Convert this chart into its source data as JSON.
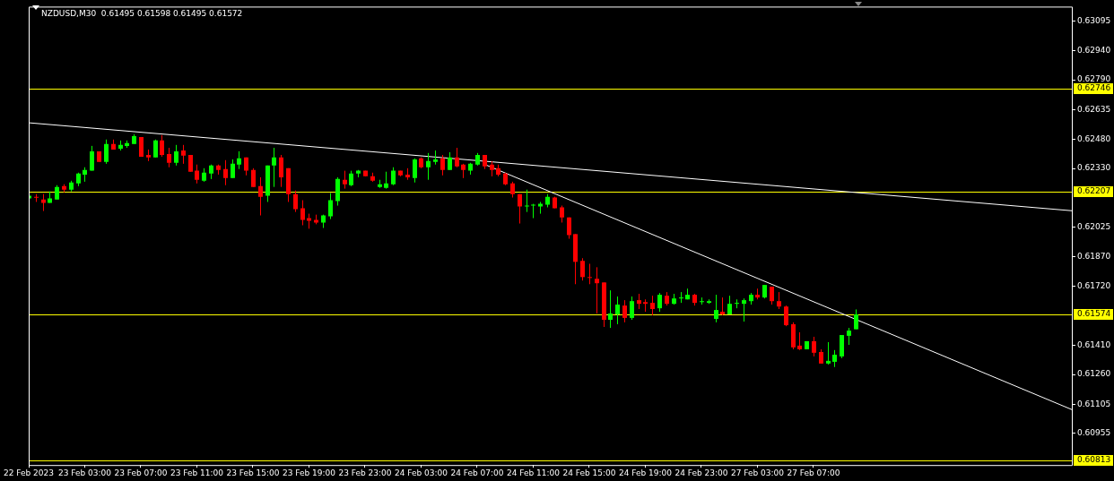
{
  "chart_data": {
    "type": "candlestick",
    "title": "NZDUSD,M30  0.61495 0.61598 0.61495 0.61572",
    "categories": [
      "22 Feb 2023",
      null,
      null,
      null,
      null,
      null,
      null,
      null,
      "23 Feb 03:00",
      null,
      null,
      null,
      null,
      null,
      null,
      null,
      "23 Feb 07:00",
      null,
      null,
      null,
      null,
      null,
      null,
      null,
      "23 Feb 11:00",
      null,
      null,
      null,
      null,
      null,
      null,
      null,
      "23 Feb 15:00",
      null,
      null,
      null,
      null,
      null,
      null,
      null,
      "23 Feb 19:00",
      null,
      null,
      null,
      null,
      null,
      null,
      null,
      "23 Feb 23:00",
      null,
      null,
      null,
      null,
      null,
      null,
      null,
      "24 Feb 03:00",
      null,
      null,
      null,
      null,
      null,
      null,
      null,
      "24 Feb 07:00",
      null,
      null,
      null,
      null,
      null,
      null,
      null,
      "24 Feb 11:00",
      null,
      null,
      null,
      null,
      null,
      null,
      null,
      "24 Feb 15:00",
      null,
      null,
      null,
      null,
      null,
      null,
      null,
      "24 Feb 19:00",
      null,
      null,
      null,
      null,
      null,
      null,
      null,
      "24 Feb 23:00",
      null,
      null,
      null,
      null,
      null,
      null,
      null,
      "27 Feb 03:00",
      null,
      null,
      null,
      null,
      null,
      null,
      null,
      "27 Feb 07:00",
      null,
      null,
      null,
      null,
      null,
      null,
      null,
      null,
      null,
      null,
      null,
      null,
      null,
      null,
      null,
      null,
      null,
      null,
      null,
      null,
      null,
      null,
      null,
      null,
      null,
      null,
      null,
      null,
      null,
      null,
      null,
      null,
      null,
      null,
      null,
      null,
      null
    ],
    "ohlc": [
      [
        0.62174,
        0.62197,
        0.62165,
        0.62188
      ],
      [
        0.62183,
        0.62197,
        0.62156,
        0.62179
      ],
      [
        0.62169,
        0.62197,
        0.62109,
        0.62151
      ],
      [
        0.62151,
        0.62211,
        0.62151,
        0.62174
      ],
      [
        0.62169,
        0.62243,
        0.62169,
        0.62234
      ],
      [
        0.62238,
        0.62248,
        0.62206,
        0.6222
      ],
      [
        0.6222,
        0.62266,
        0.62211,
        0.62257
      ],
      [
        0.62252,
        0.62308,
        0.62238,
        0.62303
      ],
      [
        0.62298,
        0.62336,
        0.62261,
        0.62322
      ],
      [
        0.62318,
        0.62447,
        0.62318,
        0.62419
      ],
      [
        0.62419,
        0.62419,
        0.62364,
        0.62364
      ],
      [
        0.62364,
        0.6248,
        0.62354,
        0.62457
      ],
      [
        0.62457,
        0.6248,
        0.62428,
        0.62428
      ],
      [
        0.62433,
        0.62475,
        0.62423,
        0.62452
      ],
      [
        0.62447,
        0.62475,
        0.62437,
        0.62461
      ],
      [
        0.62457,
        0.62507,
        0.62457,
        0.62498
      ],
      [
        0.62493,
        0.62493,
        0.62391,
        0.62391
      ],
      [
        0.624,
        0.62428,
        0.62368,
        0.62387
      ],
      [
        0.62387,
        0.6248,
        0.62387,
        0.62475
      ],
      [
        0.62475,
        0.62503,
        0.62391,
        0.624
      ],
      [
        0.62405,
        0.62437,
        0.62336,
        0.62359
      ],
      [
        0.62359,
        0.62452,
        0.62345,
        0.62419
      ],
      [
        0.62423,
        0.62452,
        0.62354,
        0.62396
      ],
      [
        0.624,
        0.624,
        0.62313,
        0.62313
      ],
      [
        0.62318,
        0.6235,
        0.62252,
        0.62271
      ],
      [
        0.62266,
        0.62331,
        0.62261,
        0.62308
      ],
      [
        0.62303,
        0.6235,
        0.62275,
        0.62345
      ],
      [
        0.62345,
        0.6235,
        0.62298,
        0.62322
      ],
      [
        0.62327,
        0.62373,
        0.62243,
        0.6228
      ],
      [
        0.6228,
        0.62377,
        0.6228,
        0.62354
      ],
      [
        0.6235,
        0.62419,
        0.62327,
        0.62382
      ],
      [
        0.62387,
        0.62387,
        0.62294,
        0.62318
      ],
      [
        0.62322,
        0.62331,
        0.62234,
        0.62234
      ],
      [
        0.62238,
        0.62284,
        0.62086,
        0.62183
      ],
      [
        0.62188,
        0.62345,
        0.62156,
        0.62345
      ],
      [
        0.62345,
        0.62437,
        0.62234,
        0.62387
      ],
      [
        0.62387,
        0.624,
        0.62234,
        0.62284
      ],
      [
        0.62331,
        0.62331,
        0.62156,
        0.62197
      ],
      [
        0.62197,
        0.62215,
        0.62104,
        0.62118
      ],
      [
        0.62123,
        0.62165,
        0.62035,
        0.62063
      ],
      [
        0.62072,
        0.62095,
        0.62017,
        0.62058
      ],
      [
        0.62063,
        0.6209,
        0.6204,
        0.62049
      ],
      [
        0.62049,
        0.6209,
        0.62021,
        0.62086
      ],
      [
        0.62081,
        0.62202,
        0.62067,
        0.62165
      ],
      [
        0.6216,
        0.62284,
        0.62137,
        0.62275
      ],
      [
        0.62271,
        0.62318,
        0.62225,
        0.62248
      ],
      [
        0.62243,
        0.62318,
        0.62238,
        0.62303
      ],
      [
        0.62303,
        0.62322,
        0.62284,
        0.62318
      ],
      [
        0.62318,
        0.62318,
        0.62289,
        0.62289
      ],
      [
        0.62289,
        0.62308,
        0.62261,
        0.62266
      ],
      [
        0.62234,
        0.62271,
        0.62229,
        0.62248
      ],
      [
        0.62229,
        0.62313,
        0.62225,
        0.62252
      ],
      [
        0.62248,
        0.62336,
        0.62243,
        0.62318
      ],
      [
        0.62318,
        0.62318,
        0.62289,
        0.62294
      ],
      [
        0.62298,
        0.62331,
        0.62271,
        0.62284
      ],
      [
        0.6228,
        0.62382,
        0.62257,
        0.62377
      ],
      [
        0.62382,
        0.62387,
        0.62331,
        0.62336
      ],
      [
        0.62336,
        0.6241,
        0.62271,
        0.62368
      ],
      [
        0.62364,
        0.62423,
        0.6235,
        0.62377
      ],
      [
        0.62382,
        0.624,
        0.62294,
        0.62322
      ],
      [
        0.62322,
        0.62414,
        0.62322,
        0.62387
      ],
      [
        0.62387,
        0.62437,
        0.62336,
        0.62341
      ],
      [
        0.6235,
        0.62354,
        0.6228,
        0.62322
      ],
      [
        0.62318,
        0.62359,
        0.62298,
        0.62354
      ],
      [
        0.6235,
        0.6241,
        0.62345,
        0.624
      ],
      [
        0.624,
        0.624,
        0.62327,
        0.62341
      ],
      [
        0.6235,
        0.62368,
        0.62289,
        0.62322
      ],
      [
        0.62331,
        0.6235,
        0.62289,
        0.62298
      ],
      [
        0.62303,
        0.62308,
        0.62243,
        0.62248
      ],
      [
        0.62252,
        0.62261,
        0.62179,
        0.62197
      ],
      [
        0.62197,
        0.62197,
        0.62044,
        0.62133
      ],
      [
        0.62133,
        0.6222,
        0.62104,
        0.62137
      ],
      [
        0.62137,
        0.62146,
        0.62072,
        0.62142
      ],
      [
        0.62133,
        0.62156,
        0.62095,
        0.62146
      ],
      [
        0.62142,
        0.62197,
        0.62128,
        0.62183
      ],
      [
        0.62179,
        0.62183,
        0.62123,
        0.62123
      ],
      [
        0.62128,
        0.62137,
        0.62049,
        0.62076
      ],
      [
        0.62076,
        0.62076,
        0.61965,
        0.61984
      ],
      [
        0.61989,
        0.61989,
        0.61729,
        0.61845
      ],
      [
        0.6185,
        0.61864,
        0.61748,
        0.61766
      ],
      [
        0.61766,
        0.61835,
        0.61729,
        0.61762
      ],
      [
        0.61757,
        0.61817,
        0.61577,
        0.61734
      ],
      [
        0.61738,
        0.61738,
        0.61507,
        0.61544
      ],
      [
        0.61544,
        0.61697,
        0.61502,
        0.61577
      ],
      [
        0.61572,
        0.61665,
        0.61521,
        0.61623
      ],
      [
        0.61618,
        0.61646,
        0.61531,
        0.61554
      ],
      [
        0.61554,
        0.61665,
        0.61544,
        0.61641
      ],
      [
        0.61646,
        0.61679,
        0.616,
        0.61627
      ],
      [
        0.61636,
        0.6165,
        0.61586,
        0.61627
      ],
      [
        0.61632,
        0.61669,
        0.61567,
        0.616
      ],
      [
        0.61604,
        0.61683,
        0.61586,
        0.61674
      ],
      [
        0.61669,
        0.61688,
        0.61618,
        0.61627
      ],
      [
        0.61627,
        0.61679,
        0.61623,
        0.61655
      ],
      [
        0.61655,
        0.61688,
        0.61632,
        0.6166
      ],
      [
        0.6165,
        0.61706,
        0.6165,
        0.61674
      ],
      [
        0.61674,
        0.61679,
        0.61618,
        0.61632
      ],
      [
        0.61636,
        0.6166,
        0.61623,
        0.61641
      ],
      [
        0.61632,
        0.6165,
        0.61627,
        0.61641
      ],
      [
        0.61549,
        0.61674,
        0.61531,
        0.61595
      ],
      [
        0.61586,
        0.6166,
        0.61567,
        0.61572
      ],
      [
        0.61572,
        0.61669,
        0.61572,
        0.61627
      ],
      [
        0.61627,
        0.6165,
        0.61604,
        0.61632
      ],
      [
        0.61627,
        0.61655,
        0.61535,
        0.61646
      ],
      [
        0.61641,
        0.61683,
        0.61623,
        0.61674
      ],
      [
        0.61674,
        0.61706,
        0.6165,
        0.6166
      ],
      [
        0.6166,
        0.61725,
        0.61655,
        0.61725
      ],
      [
        0.61716,
        0.61716,
        0.61623,
        0.61641
      ],
      [
        0.61641,
        0.61688,
        0.616,
        0.61613
      ],
      [
        0.61613,
        0.61618,
        0.61511,
        0.61516
      ],
      [
        0.61521,
        0.61531,
        0.61391,
        0.61401
      ],
      [
        0.6141,
        0.61479,
        0.61387,
        0.61391
      ],
      [
        0.61391,
        0.61433,
        0.61391,
        0.61433
      ],
      [
        0.61433,
        0.61456,
        0.61354,
        0.61373
      ],
      [
        0.61377,
        0.61391,
        0.61317,
        0.61317
      ],
      [
        0.61317,
        0.61428,
        0.61312,
        0.61331
      ],
      [
        0.61326,
        0.61387,
        0.61299,
        0.61363
      ],
      [
        0.61354,
        0.61465,
        0.61345,
        0.61465
      ],
      [
        0.61461,
        0.61502,
        0.61414,
        0.61488
      ],
      [
        0.61495,
        0.61598,
        0.61495,
        0.61572
      ],
      null,
      null,
      null,
      null,
      null,
      null,
      null,
      null,
      null,
      null,
      null,
      null,
      null,
      null,
      null,
      null,
      null,
      null,
      null,
      null,
      null,
      null,
      null,
      null,
      null,
      null,
      null,
      null,
      null,
      null,
      null
    ],
    "series": [
      {
        "type": "line",
        "color": "#ffffff",
        "values": [
          0.62567,
          null,
          null,
          null,
          null,
          null,
          null,
          null,
          null,
          null,
          null,
          null,
          null,
          null,
          null,
          null,
          null,
          null,
          null,
          null,
          null,
          null,
          null,
          null,
          null,
          null,
          null,
          null,
          null,
          null,
          null,
          null,
          null,
          null,
          null,
          null,
          null,
          null,
          null,
          null,
          null,
          null,
          null,
          null,
          null,
          null,
          null,
          null,
          null,
          null,
          null,
          null,
          null,
          null,
          null,
          null,
          null,
          null,
          null,
          null,
          null,
          null,
          null,
          null,
          null,
          null,
          null,
          null,
          null,
          null,
          null,
          null,
          null,
          null,
          null,
          null,
          null,
          null,
          null,
          null,
          null,
          null,
          null,
          null,
          null,
          null,
          null,
          null,
          null,
          null,
          null,
          null,
          null,
          null,
          null,
          null,
          null,
          null,
          null,
          null,
          null,
          null,
          null,
          null,
          null,
          null,
          null,
          null,
          null,
          null,
          null,
          null,
          null,
          null,
          null,
          null,
          null,
          null,
          null,
          null,
          null,
          null,
          null,
          null,
          null,
          null,
          null,
          null,
          null,
          null,
          null,
          null,
          null,
          null,
          null,
          null,
          null,
          null,
          null,
          null,
          null,
          null,
          null,
          null,
          null,
          null,
          null,
          null,
          null,
          0.6211
        ]
      },
      {
        "type": "line",
        "color": "#ffffff",
        "values": [
          null,
          null,
          null,
          null,
          null,
          null,
          null,
          null,
          null,
          null,
          null,
          null,
          null,
          null,
          null,
          null,
          null,
          null,
          null,
          null,
          null,
          null,
          null,
          null,
          null,
          null,
          null,
          null,
          null,
          null,
          null,
          null,
          null,
          null,
          null,
          null,
          null,
          null,
          null,
          null,
          null,
          null,
          null,
          null,
          null,
          null,
          null,
          null,
          null,
          null,
          null,
          null,
          null,
          null,
          null,
          null,
          null,
          null,
          null,
          null,
          null,
          null,
          null,
          null,
          null,
          0.62352,
          null,
          null,
          null,
          null,
          null,
          null,
          null,
          null,
          null,
          null,
          null,
          null,
          null,
          null,
          null,
          null,
          null,
          null,
          null,
          null,
          null,
          null,
          null,
          null,
          null,
          null,
          null,
          null,
          null,
          null,
          null,
          null,
          null,
          null,
          null,
          null,
          null,
          null,
          null,
          null,
          null,
          null,
          null,
          null,
          null,
          null,
          null,
          null,
          null,
          null,
          null,
          null,
          null,
          null,
          null,
          null,
          null,
          null,
          null,
          null,
          null,
          null,
          null,
          null,
          null,
          null,
          null,
          null,
          null,
          null,
          null,
          null,
          null,
          null,
          null,
          null,
          null,
          null,
          null,
          null,
          null,
          null,
          null,
          0.61076
        ]
      }
    ],
    "ylim": [
      0.6079,
      0.6317
    ],
    "yticks": [
      0.63095,
      {
        "value": 0.6294,
        "label": "0.62940"
      },
      {
        "value": 0.6279,
        "label": "0.62790"
      },
      0.62635,
      {
        "value": 0.6248,
        "label": "0.62480"
      },
      {
        "value": 0.6233,
        "label": "0.62330"
      },
      0.62025,
      {
        "value": 0.6187,
        "label": "0.61870"
      },
      {
        "value": 0.6172,
        "label": "0.61720"
      },
      {
        "value": 0.6141,
        "label": "0.61410"
      },
      {
        "value": 0.6126,
        "label": "0.61260"
      },
      0.61105,
      0.60955
    ],
    "ref_lines": [
      {
        "axis": "y",
        "value": 0.62746,
        "label": "0.62746",
        "color": "#ffff00"
      },
      {
        "axis": "y",
        "value": 0.62207,
        "label": "0.62207",
        "color": "#ffff00"
      },
      {
        "axis": "y",
        "value": 0.61574,
        "label": "0.61574",
        "color": "#ffff00"
      },
      {
        "axis": "y",
        "value": 0.60813,
        "label": "0.60813",
        "color": "#ffff00"
      }
    ]
  }
}
